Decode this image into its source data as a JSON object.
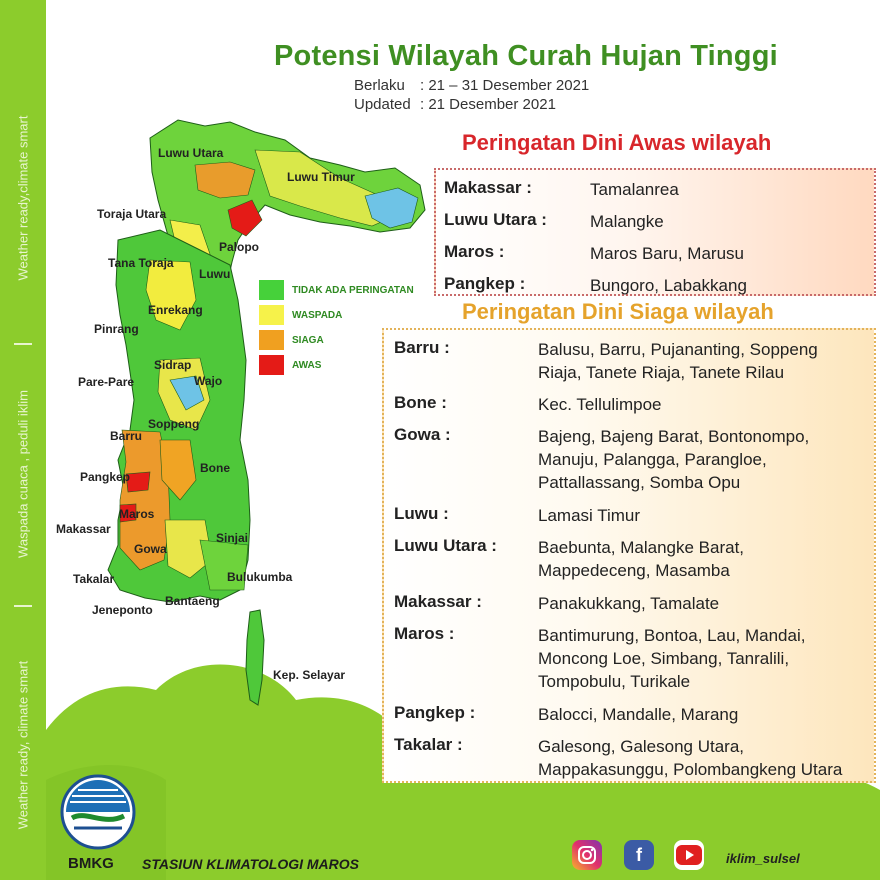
{
  "sidebar": {
    "text_top": "Weather ready,climate smart",
    "text_mid": "Waspada cuaca , peduli iklim",
    "text_bottom": "Weather ready, climate smart"
  },
  "header": {
    "title": "Potensi Wilayah Curah Hujan Tinggi",
    "berlaku_label": "Berlaku",
    "berlaku_value": ": 21 – 31 Desember 2021",
    "updated_label": "Updated",
    "updated_value": ": 21 Desember 2021"
  },
  "awas": {
    "title": "Peringatan Dini Awas wilayah",
    "rows": [
      {
        "region": "Makassar :",
        "areas": [
          "Tamalanrea"
        ]
      },
      {
        "region": "Luwu Utara :",
        "areas": [
          "Malangke"
        ]
      },
      {
        "region": "Maros :",
        "areas": [
          "Maros Baru, Marusu"
        ]
      },
      {
        "region": "Pangkep :",
        "areas": [
          "Bungoro, Labakkang"
        ]
      }
    ]
  },
  "siaga": {
    "title": "Peringatan Dini Siaga wilayah",
    "rows": [
      {
        "region": "Barru :",
        "areas": [
          "Balusu, Barru, Pujananting, Soppeng",
          "Riaja, Tanete Riaja, Tanete Rilau"
        ]
      },
      {
        "region": "Bone :",
        "areas": [
          "Kec. Tellulimpoe"
        ]
      },
      {
        "region": "Gowa :",
        "areas": [
          "Bajeng, Bajeng Barat, Bontonompo,",
          "Manuju, Palangga, Parangloe,",
          "Pattallassang, Somba Opu"
        ]
      },
      {
        "region": "Luwu :",
        "areas": [
          "Lamasi Timur"
        ]
      },
      {
        "region": "Luwu Utara :",
        "areas": [
          "Baebunta, Malangke Barat,",
          "Mappedeceng, Masamba"
        ]
      },
      {
        "region": "Makassar :",
        "areas": [
          "Panakukkang, Tamalate"
        ]
      },
      {
        "region": "Maros :",
        "areas": [
          "Bantimurung, Bontoa, Lau, Mandai,",
          "Moncong Loe, Simbang, Tanralili,",
          "Tompobulu, Turikale"
        ]
      },
      {
        "region": "Pangkep :",
        "areas": [
          "Balocci, Mandalle, Marang"
        ]
      },
      {
        "region": "Takalar :",
        "areas": [
          "Galesong, Galesong Utara,",
          "Mappakasunggu, Polombangkeng Utara"
        ]
      }
    ]
  },
  "legend": [
    {
      "label": "TIDAK ADA PERINGATAN",
      "color": "#46d13a"
    },
    {
      "label": "WASPADA",
      "color": "#f6f24a"
    },
    {
      "label": "SIAGA",
      "color": "#f0a020"
    },
    {
      "label": "AWAS",
      "color": "#e41b17"
    }
  ],
  "map_labels": [
    {
      "id": "luwu-utara",
      "text": "Luwu Utara"
    },
    {
      "id": "luwu-timur",
      "text": "Luwu Timur"
    },
    {
      "id": "toraja-utara",
      "text": "Toraja Utara"
    },
    {
      "id": "palopo",
      "text": "Palopo"
    },
    {
      "id": "tana-toraja",
      "text": "Tana Toraja"
    },
    {
      "id": "luwu",
      "text": "Luwu"
    },
    {
      "id": "enrekang",
      "text": "Enrekang"
    },
    {
      "id": "pinrang",
      "text": "Pinrang"
    },
    {
      "id": "sidrap",
      "text": "Sidrap"
    },
    {
      "id": "pare-pare",
      "text": "Pare-Pare"
    },
    {
      "id": "wajo",
      "text": "Wajo"
    },
    {
      "id": "soppeng",
      "text": "Soppeng"
    },
    {
      "id": "barru",
      "text": "Barru"
    },
    {
      "id": "bone",
      "text": "Bone"
    },
    {
      "id": "pangkep",
      "text": "Pangkep"
    },
    {
      "id": "maros",
      "text": "Maros"
    },
    {
      "id": "makassar",
      "text": "Makassar"
    },
    {
      "id": "sinjai",
      "text": "Sinjai"
    },
    {
      "id": "gowa",
      "text": "Gowa"
    },
    {
      "id": "takalar",
      "text": "Takalar"
    },
    {
      "id": "bulukumba",
      "text": "Bulukumba"
    },
    {
      "id": "bantaeng",
      "text": "Bantaeng"
    },
    {
      "id": "jeneponto",
      "text": "Jeneponto"
    },
    {
      "id": "selayar",
      "text": "Kep. Selayar"
    }
  ],
  "footer": {
    "logo_text": "BMKG",
    "station": "STASIUN KLIMATOLOGI MAROS",
    "handle": "iklim_sulsel",
    "social_icons": [
      "instagram-icon",
      "facebook-icon",
      "youtube-icon"
    ]
  },
  "colors": {
    "green_bg": "#8ccc2c",
    "title_green": "#3f8f22",
    "awas_red": "#d8262b",
    "siaga_orange": "#e5a32c"
  }
}
